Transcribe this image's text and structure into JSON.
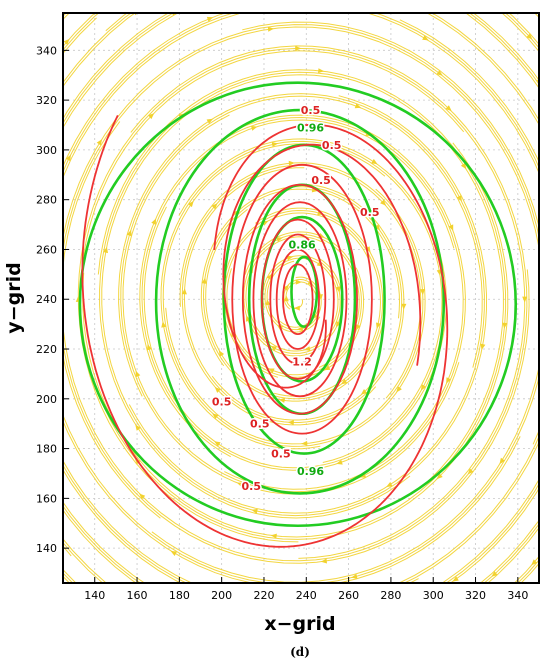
{
  "chart_data": {
    "type": "contour",
    "xlabel": "x−grid",
    "ylabel": "y−grid",
    "panel_label": "(d)",
    "xlim": [
      125,
      350
    ],
    "ylim": [
      126,
      355
    ],
    "x_ticks": [
      140,
      160,
      180,
      200,
      220,
      240,
      260,
      280,
      300,
      320,
      340
    ],
    "y_ticks": [
      140,
      160,
      180,
      200,
      220,
      240,
      260,
      280,
      300,
      320,
      340
    ],
    "grid": true,
    "center": [
      236,
      240
    ],
    "colors": {
      "streamlines": "#f2d22e",
      "red_contours": "#ee3333",
      "green_contours": "#22cc22"
    },
    "streamlines": {
      "description": "clockwise spiral wind streamlines",
      "count": 46
    },
    "red_contours": {
      "ellipses": [
        {
          "cx": 236,
          "cy": 240,
          "rx": 7,
          "ry": 14
        },
        {
          "cx": 236,
          "cy": 240,
          "rx": 10,
          "ry": 20
        },
        {
          "cx": 236,
          "cy": 240,
          "rx": 13,
          "ry": 26
        },
        {
          "cx": 236,
          "cy": 240,
          "rx": 17,
          "ry": 32
        },
        {
          "cx": 237,
          "cy": 240,
          "rx": 22,
          "ry": 39
        },
        {
          "cx": 237,
          "cy": 240,
          "rx": 27,
          "ry": 46
        },
        {
          "cx": 238,
          "cy": 240,
          "rx": 33,
          "ry": 54
        }
      ],
      "spirals": [
        {
          "cx": 236,
          "cy": 240,
          "r_start_x": 14,
          "r_start_y": 24,
          "r_end_x": 60,
          "r_end_y": 78,
          "turns": 1.0,
          "start_angle_deg": 20
        },
        {
          "cx": 236,
          "cy": 240,
          "r_start_x": 42,
          "r_start_y": 58,
          "r_end_x": 108,
          "r_end_y": 120,
          "turns": 1.05,
          "start_angle_deg": 200
        }
      ]
    },
    "green_contours": {
      "ellipses": [
        {
          "cx": 239,
          "cy": 243,
          "rx": 6,
          "ry": 14
        },
        {
          "cx": 238,
          "cy": 240,
          "rx": 19,
          "ry": 33
        },
        {
          "cx": 238,
          "cy": 240,
          "rx": 25,
          "ry": 46
        },
        {
          "cx": 239,
          "cy": 240,
          "rx": 38,
          "ry": 62
        },
        {
          "cx": 237,
          "cy": 239,
          "rx": 68,
          "ry": 77
        },
        {
          "cx": 236,
          "cy": 238,
          "rx": 103,
          "ry": 89
        }
      ]
    },
    "contour_labels": [
      {
        "text": "0.5",
        "x": 242,
        "y": 316,
        "color": "red"
      },
      {
        "text": "0.96",
        "x": 242,
        "y": 309,
        "color": "green"
      },
      {
        "text": "0.5",
        "x": 252,
        "y": 302,
        "color": "red"
      },
      {
        "text": "0.5",
        "x": 247,
        "y": 288,
        "color": "red"
      },
      {
        "text": "0.5",
        "x": 270,
        "y": 275,
        "color": "red"
      },
      {
        "text": "0.86",
        "x": 238,
        "y": 262,
        "color": "green"
      },
      {
        "text": "1.2",
        "x": 238,
        "y": 215,
        "color": "red"
      },
      {
        "text": "0.5",
        "x": 200,
        "y": 199,
        "color": "red"
      },
      {
        "text": "0.5",
        "x": 218,
        "y": 190,
        "color": "red"
      },
      {
        "text": "0.5",
        "x": 228,
        "y": 178,
        "color": "red"
      },
      {
        "text": "0.96",
        "x": 242,
        "y": 171,
        "color": "green"
      },
      {
        "text": "0.5",
        "x": 214,
        "y": 165,
        "color": "red"
      }
    ]
  }
}
